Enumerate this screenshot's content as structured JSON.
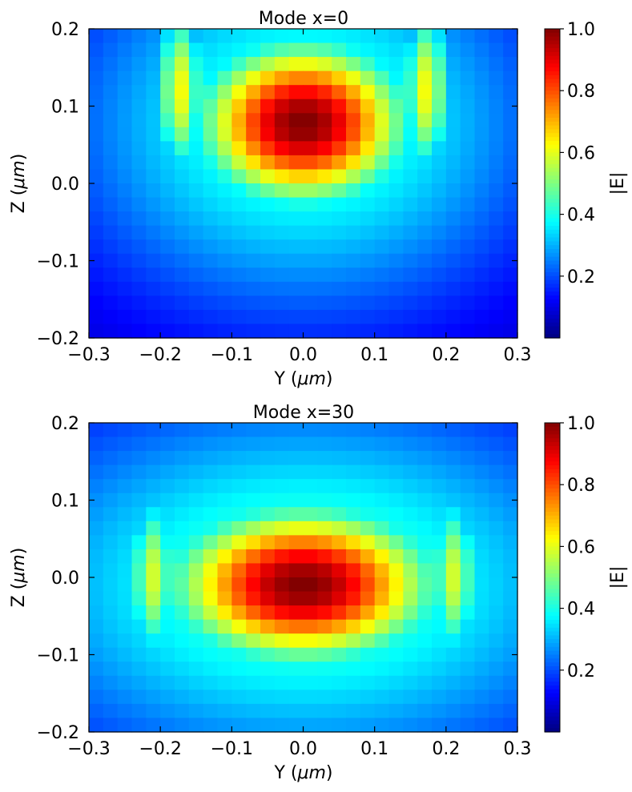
{
  "chart_data": [
    {
      "type": "heatmap",
      "title": "Mode x=0",
      "xlabel_main": "Y (",
      "xlabel_mu": "μm",
      "xlabel_end": ")",
      "ylabel_main": "Z (",
      "ylabel_mu": "μm",
      "ylabel_end": ")",
      "xlim": [
        -0.3,
        0.3
      ],
      "ylim": [
        -0.2,
        0.2
      ],
      "xticks": [
        -0.3,
        -0.2,
        -0.1,
        0.0,
        0.1,
        0.2,
        0.3
      ],
      "xtick_labels": [
        "−0.3",
        "−0.2",
        "−0.1",
        "0.0",
        "0.1",
        "0.2",
        "0.3"
      ],
      "yticks": [
        -0.2,
        -0.1,
        0.0,
        0.1,
        0.2
      ],
      "ytick_labels": [
        "−0.2",
        "−0.1",
        "0.0",
        "0.1",
        "0.2"
      ],
      "grid": {
        "nx": 30,
        "nz": 22
      },
      "field": {
        "center_y": 0.0,
        "center_z": 0.078,
        "sigma_y": 0.105,
        "sigma_z": 0.075,
        "side_lobe_y": 0.172,
        "side_lobe_z": 0.12,
        "side_lobe_amp": 0.6,
        "side_lobe_sigma": 0.025,
        "floor": 0.04
      },
      "colorbar": {
        "label": "|E|",
        "ticks": [
          0.2,
          0.4,
          0.6,
          0.8,
          1.0
        ],
        "tick_labels": [
          "0.2",
          "0.4",
          "0.6",
          "0.8",
          "1.0"
        ],
        "range": [
          0.0,
          1.0
        ],
        "colormap": "jet"
      }
    },
    {
      "type": "heatmap",
      "title": "Mode x=30",
      "xlabel_main": "Y (",
      "xlabel_mu": "μm",
      "xlabel_end": ")",
      "ylabel_main": "Z (",
      "ylabel_mu": "μm",
      "ylabel_end": ")",
      "xlim": [
        -0.3,
        0.3
      ],
      "ylim": [
        -0.2,
        0.2
      ],
      "xticks": [
        -0.3,
        -0.2,
        -0.1,
        0.0,
        0.1,
        0.2,
        0.3
      ],
      "xtick_labels": [
        "−0.3",
        "−0.2",
        "−0.1",
        "0.0",
        "0.1",
        "0.2",
        "0.3"
      ],
      "yticks": [
        -0.2,
        -0.1,
        0.0,
        0.1,
        0.2
      ],
      "ytick_labels": [
        "−0.2",
        "−0.1",
        "0.0",
        "0.1",
        "0.2"
      ],
      "grid": {
        "nx": 30,
        "nz": 22
      },
      "field": {
        "center_y": 0.0,
        "center_z": -0.01,
        "sigma_y": 0.13,
        "sigma_z": 0.07,
        "side_lobe_y": 0.21,
        "side_lobe_z": 0.0,
        "side_lobe_amp": 0.55,
        "side_lobe_sigma": 0.025,
        "floor": 0.07
      },
      "colorbar": {
        "label": "|E|",
        "ticks": [
          0.2,
          0.4,
          0.6,
          0.8,
          1.0
        ],
        "tick_labels": [
          "0.2",
          "0.4",
          "0.6",
          "0.8",
          "1.0"
        ],
        "range": [
          0.0,
          1.0
        ],
        "colormap": "jet"
      }
    }
  ]
}
